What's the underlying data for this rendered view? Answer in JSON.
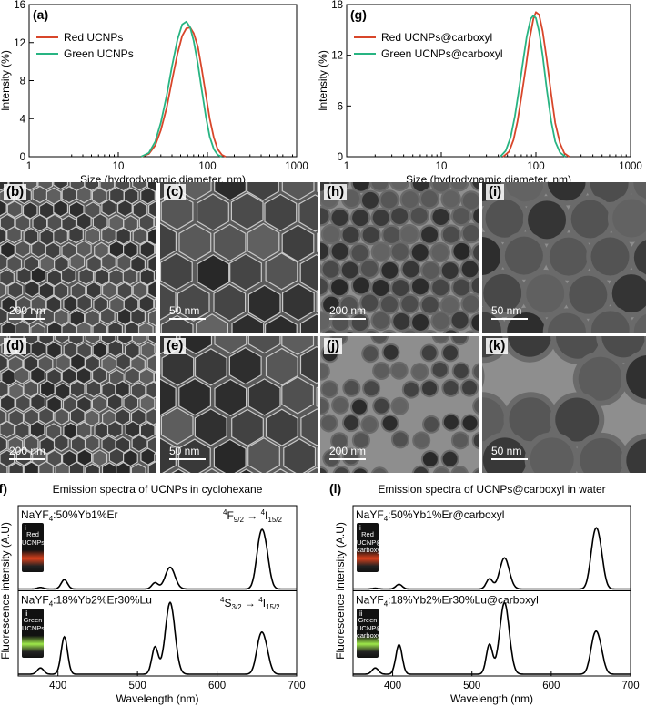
{
  "panels_tem": [
    {
      "label": "(b)",
      "scale": "200 nm"
    },
    {
      "label": "(c)",
      "scale": "50 nm"
    },
    {
      "label": "(d)",
      "scale": "200 nm"
    },
    {
      "label": "(e)",
      "scale": "50 nm"
    },
    {
      "label": "(h)",
      "scale": "200 nm"
    },
    {
      "label": "(i)",
      "scale": "50 nm"
    },
    {
      "label": "(j)",
      "scale": "200 nm"
    },
    {
      "label": "(k)",
      "scale": "50 nm"
    }
  ],
  "vials": [
    {
      "roman": "i",
      "text": "Red\nUCNPs",
      "glow": "#d8401c"
    },
    {
      "roman": "ii",
      "text": "Green\nUCNPs",
      "glow": "#9ee84a"
    },
    {
      "roman": "i",
      "text": "Red\nUCNP@\ncarboxyl",
      "glow": "#d8401c"
    },
    {
      "roman": "ii",
      "text": "Green\nUCNP@\ncarboxyl",
      "glow": "#9ee84a"
    }
  ],
  "chart_data": [
    {
      "panel": "(a)",
      "type": "line",
      "xscale": "log",
      "xlim": [
        1,
        1000
      ],
      "ylim": [
        0,
        16
      ],
      "xticks": [
        1,
        10,
        100,
        1000
      ],
      "yticks": [
        0,
        4,
        8,
        12,
        16
      ],
      "xlabel": "Size (hydrodynamic diameter, nm)",
      "ylabel": "Intensity (%)",
      "legend": "top-left",
      "series": [
        {
          "name": "Red UCNPs",
          "color": "#d8462a",
          "x": [
            18,
            22,
            26,
            30,
            35,
            40,
            46,
            52,
            58,
            64,
            70,
            78,
            86,
            96,
            106,
            118,
            130,
            145,
            160
          ],
          "y": [
            0,
            0.3,
            1.2,
            2.8,
            5.2,
            8.0,
            10.8,
            12.7,
            13.5,
            13.6,
            13.0,
            11.6,
            9.3,
            6.5,
            4.0,
            2.0,
            0.8,
            0.2,
            0
          ]
        },
        {
          "name": "Green UCNPs",
          "color": "#28b482",
          "x": [
            18,
            22,
            26,
            30,
            35,
            40,
            46,
            52,
            58,
            64,
            70,
            78,
            86,
            96,
            106,
            118,
            130,
            145
          ],
          "y": [
            0,
            0.4,
            1.6,
            3.6,
            6.5,
            9.5,
            12.3,
            13.9,
            14.2,
            13.6,
            12.2,
            9.8,
            7.1,
            4.2,
            2.1,
            0.8,
            0.2,
            0
          ]
        }
      ]
    },
    {
      "panel": "(g)",
      "type": "line",
      "xscale": "log",
      "xlim": [
        1,
        1000
      ],
      "ylim": [
        0,
        18
      ],
      "xticks": [
        1,
        10,
        100,
        1000
      ],
      "yticks": [
        0,
        6,
        12,
        18
      ],
      "xlabel": "Size (hydrodynamic diameter, nm)",
      "ylabel": "Intensity (%)",
      "legend": "top-left",
      "series": [
        {
          "name": "Red UCNPs@carboxyl",
          "color": "#d8462a",
          "x": [
            45,
            52,
            58,
            64,
            70,
            78,
            86,
            94,
            100,
            108,
            118,
            130,
            145,
            160,
            180,
            200,
            225
          ],
          "y": [
            0,
            0.6,
            2.0,
            4.2,
            7.0,
            10.5,
            14.0,
            16.3,
            17.1,
            16.8,
            14.8,
            11.5,
            7.4,
            4.0,
            1.6,
            0.4,
            0
          ]
        },
        {
          "name": "Green UCNPs@carboxyl",
          "color": "#28b482",
          "x": [
            42,
            48,
            54,
            60,
            66,
            72,
            80,
            88,
            94,
            100,
            108,
            118,
            130,
            145,
            160,
            180,
            205
          ],
          "y": [
            0,
            0.7,
            2.3,
            4.8,
            7.8,
            10.8,
            14.2,
            16.3,
            16.7,
            16.4,
            14.8,
            11.9,
            8.0,
            4.2,
            1.8,
            0.5,
            0
          ]
        }
      ]
    },
    {
      "panel": "(f)",
      "type": "line",
      "title": "Emission spectra of UCNPs in cyclohexane",
      "xlim": [
        350,
        700
      ],
      "xticks": [
        400,
        500,
        600,
        700
      ],
      "xlabel": "Wavelength (nm)",
      "ylabel": "Fluorescence intensity (A.U)",
      "subpanels": [
        {
          "roman": "i",
          "label": "NaYF4:50%Yb1%Er",
          "annotation": {
            "text": "4F9/2 → 4I15/2"
          },
          "peaks": [
            {
              "c": 378,
              "h": 0.02,
              "w": 4
            },
            {
              "c": 408,
              "h": 0.12,
              "w": 4
            },
            {
              "c": 522,
              "h": 0.08,
              "w": 4
            },
            {
              "c": 541,
              "h": 0.28,
              "w": 6
            },
            {
              "c": 654,
              "h": 0.55,
              "w": 5
            },
            {
              "c": 661,
              "h": 0.42,
              "w": 5
            }
          ]
        },
        {
          "roman": "ii",
          "label": "NaYF4:18%Yb2%Er30%Lu",
          "annotation": {
            "text": "4S3/2 → 4I15/2"
          },
          "peaks": [
            {
              "c": 378,
              "h": 0.08,
              "w": 4
            },
            {
              "c": 408,
              "h": 0.48,
              "w": 4
            },
            {
              "c": 522,
              "h": 0.35,
              "w": 4
            },
            {
              "c": 541,
              "h": 0.92,
              "w": 6
            },
            {
              "c": 654,
              "h": 0.4,
              "w": 5
            },
            {
              "c": 661,
              "h": 0.28,
              "w": 5
            }
          ]
        }
      ]
    },
    {
      "panel": "(l)",
      "type": "line",
      "title": "Emission spectra of UCNPs@carboxyl in water",
      "xlim": [
        350,
        700
      ],
      "xticks": [
        400,
        500,
        600,
        700
      ],
      "xlabel": "Wavelength (nm)",
      "ylabel": "Fluorescence intensity (A.U)",
      "subpanels": [
        {
          "roman": "i",
          "label": "NaYF4:50%Yb1%Er@carboxyl",
          "peaks": [
            {
              "c": 378,
              "h": 0.01,
              "w": 4
            },
            {
              "c": 408,
              "h": 0.06,
              "w": 4
            },
            {
              "c": 522,
              "h": 0.13,
              "w": 4
            },
            {
              "c": 541,
              "h": 0.4,
              "w": 6
            },
            {
              "c": 654,
              "h": 0.55,
              "w": 5
            },
            {
              "c": 661,
              "h": 0.45,
              "w": 5
            }
          ]
        },
        {
          "roman": "ii",
          "label": "NaYF4:18%Yb2%Er30%Lu@carboxyl",
          "peaks": [
            {
              "c": 378,
              "h": 0.08,
              "w": 4
            },
            {
              "c": 408,
              "h": 0.38,
              "w": 4
            },
            {
              "c": 522,
              "h": 0.38,
              "w": 4
            },
            {
              "c": 541,
              "h": 0.92,
              "w": 6
            },
            {
              "c": 654,
              "h": 0.4,
              "w": 5
            },
            {
              "c": 661,
              "h": 0.3,
              "w": 5
            }
          ]
        }
      ]
    }
  ]
}
